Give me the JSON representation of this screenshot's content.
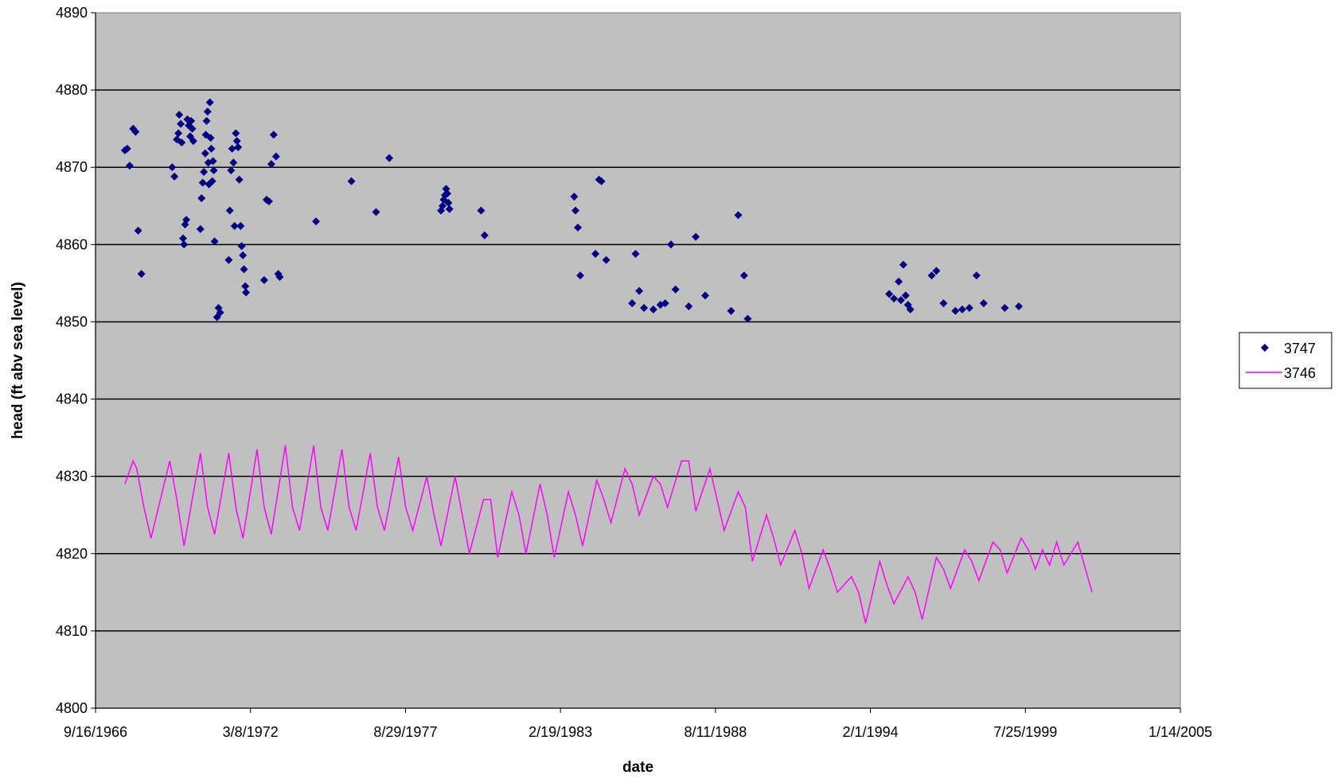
{
  "chart_data": {
    "type": "scatter",
    "title": "",
    "xlabel": "date",
    "ylabel": "head (ft abv sea level)",
    "xlim": [
      "9/16/1966",
      "1/14/2005"
    ],
    "ylim": [
      4800,
      4890
    ],
    "xticks": [
      "9/16/1966",
      "3/8/1972",
      "8/29/1977",
      "2/19/1983",
      "8/11/1988",
      "2/1/1994",
      "7/25/1999",
      "1/14/2005"
    ],
    "yticks": [
      "4800",
      "4810",
      "4820",
      "4830",
      "4840",
      "4850",
      "4860",
      "4870",
      "4880",
      "4890"
    ],
    "grid": {
      "y_major": true,
      "x_major": false
    },
    "plot_background": "#c0c0c0",
    "legend_position": "right",
    "series": [
      {
        "name": "3747",
        "kind": "markers",
        "color": "#000080",
        "points": [
          [
            "9/30/1967",
            4872.2
          ],
          [
            "10/30/1967",
            4872.4
          ],
          [
            "12/1/1967",
            4870.2
          ],
          [
            "1/15/1968",
            4875
          ],
          [
            "2/15/1968",
            4874.6
          ],
          [
            "3/20/1968",
            4861.8
          ],
          [
            "5/1/1968",
            4856.2
          ],
          [
            "6/1/1969",
            4870
          ],
          [
            "7/1/1969",
            4868.8
          ],
          [
            "8/1/1969",
            4873.6
          ],
          [
            "8/20/1969",
            4874.4
          ],
          [
            "9/1/1969",
            4876.8
          ],
          [
            "9/20/1969",
            4875.6
          ],
          [
            "10/1/1969",
            4873.2
          ],
          [
            "10/20/1969",
            4860.8
          ],
          [
            "11/1/1969",
            4860
          ],
          [
            "11/15/1969",
            4862.6
          ],
          [
            "12/1/1969",
            4863.2
          ],
          [
            "12/15/1969",
            4876.2
          ],
          [
            "1/1/1970",
            4875.4
          ],
          [
            "1/20/1970",
            4874
          ],
          [
            "2/1/1970",
            4876
          ],
          [
            "2/15/1970",
            4875
          ],
          [
            "3/1/1970",
            4873.4
          ],
          [
            "6/1/1970",
            4862
          ],
          [
            "6/15/1970",
            4866
          ],
          [
            "7/1/1970",
            4868
          ],
          [
            "7/15/1970",
            4869.4
          ],
          [
            "8/1/1970",
            4871.8
          ],
          [
            "8/10/1970",
            4874.2
          ],
          [
            "8/20/1970",
            4876
          ],
          [
            "9/1/1970",
            4877.2
          ],
          [
            "9/10/1970",
            4870.6
          ],
          [
            "9/20/1970",
            4867.8
          ],
          [
            "10/1/1970",
            4878.4
          ],
          [
            "10/10/1970",
            4873.8
          ],
          [
            "10/20/1970",
            4872.4
          ],
          [
            "11/1/1970",
            4868.2
          ],
          [
            "11/10/1970",
            4870.8
          ],
          [
            "11/20/1970",
            4869.6
          ],
          [
            "12/1/1970",
            4860.4
          ],
          [
            "1/1/1971",
            4850.6
          ],
          [
            "1/20/1971",
            4851.8
          ],
          [
            "2/10/1971",
            4851.2
          ],
          [
            "6/1/1971",
            4858
          ],
          [
            "6/15/1971",
            4864.4
          ],
          [
            "7/1/1971",
            4869.6
          ],
          [
            "7/15/1971",
            4872.4
          ],
          [
            "8/1/1971",
            4870.6
          ],
          [
            "8/15/1971",
            4862.4
          ],
          [
            "9/1/1971",
            4874.4
          ],
          [
            "9/15/1971",
            4873.4
          ],
          [
            "10/1/1971",
            4872.6
          ],
          [
            "10/15/1971",
            4868.4
          ],
          [
            "11/1/1971",
            4862.4
          ],
          [
            "11/15/1971",
            4859.8
          ],
          [
            "12/1/1971",
            4858.6
          ],
          [
            "12/15/1971",
            4856.8
          ],
          [
            "1/1/1972",
            4854.6
          ],
          [
            "1/10/1972",
            4853.8
          ],
          [
            "9/1/1972",
            4855.4
          ],
          [
            "10/1/1972",
            4865.8
          ],
          [
            "11/1/1972",
            4865.6
          ],
          [
            "12/1/1972",
            4870.4
          ],
          [
            "1/1/1973",
            4874.2
          ],
          [
            "2/1/1973",
            4871.4
          ],
          [
            "3/1/1973",
            4856.2
          ],
          [
            "3/20/1973",
            4855.8
          ],
          [
            "7/1/1974",
            4863
          ],
          [
            "10/1/1975",
            4868.2
          ],
          [
            "8/15/1976",
            4864.2
          ],
          [
            "2/1/1977",
            4871.2
          ],
          [
            "12/1/1978",
            4864.4
          ],
          [
            "12/20/1978",
            4865
          ],
          [
            "1/5/1979",
            4865.8
          ],
          [
            "1/20/1979",
            4866.4
          ],
          [
            "2/5/1979",
            4867.2
          ],
          [
            "2/20/1979",
            4866.6
          ],
          [
            "3/5/1979",
            4865.4
          ],
          [
            "3/20/1979",
            4864.6
          ],
          [
            "5/1/1980",
            4864.4
          ],
          [
            "6/15/1980",
            4861.2
          ],
          [
            "8/15/1983",
            4866.2
          ],
          [
            "9/1/1983",
            4864.4
          ],
          [
            "10/1/1983",
            4862.2
          ],
          [
            "11/1/1983",
            4856
          ],
          [
            "5/15/1984",
            4858.8
          ],
          [
            "7/1/1984",
            4868.4
          ],
          [
            "8/1/1984",
            4868.2
          ],
          [
            "10/1/1984",
            4858
          ],
          [
            "9/1/1985",
            4852.4
          ],
          [
            "10/15/1985",
            4858.8
          ],
          [
            "12/1/1985",
            4854
          ],
          [
            "2/1/1986",
            4851.8
          ],
          [
            "6/1/1986",
            4851.6
          ],
          [
            "9/1/1986",
            4852.2
          ],
          [
            "11/1/1986",
            4852.4
          ],
          [
            "1/15/1987",
            4860
          ],
          [
            "3/15/1987",
            4854.2
          ],
          [
            "9/1/1987",
            4852
          ],
          [
            "12/1/1987",
            4861
          ],
          [
            "4/1/1988",
            4853.4
          ],
          [
            "3/1/1989",
            4851.4
          ],
          [
            "6/1/1989",
            4863.8
          ],
          [
            "8/15/1989",
            4856
          ],
          [
            "10/1/1989",
            4850.4
          ],
          [
            "10/1/1994",
            4853.6
          ],
          [
            "12/1/1994",
            4853
          ],
          [
            "2/1/1995",
            4855.2
          ],
          [
            "3/1/1995",
            4852.8
          ],
          [
            "4/1/1995",
            4857.4
          ],
          [
            "5/1/1995",
            4853.4
          ],
          [
            "6/1/1995",
            4852.2
          ],
          [
            "7/1/1995",
            4851.6
          ],
          [
            "4/1/1996",
            4856
          ],
          [
            "6/1/1996",
            4856.6
          ],
          [
            "9/1/1996",
            4852.4
          ],
          [
            "2/1/1997",
            4851.4
          ],
          [
            "5/1/1997",
            4851.6
          ],
          [
            "8/1/1997",
            4851.8
          ],
          [
            "11/1/1997",
            4856
          ],
          [
            "2/1/1998",
            4852.4
          ],
          [
            "11/1/1998",
            4851.8
          ],
          [
            "5/1/1999",
            4852
          ]
        ]
      },
      {
        "name": "3746",
        "kind": "line",
        "color": "#ff00ff",
        "points": [
          [
            "9/30/1967",
            4829
          ],
          [
            "1/15/1968",
            4832
          ],
          [
            "3/1/1968",
            4831
          ],
          [
            "6/1/1968",
            4826
          ],
          [
            "9/1/1968",
            4822
          ],
          [
            "5/1/1969",
            4832
          ],
          [
            "8/1/1969",
            4827
          ],
          [
            "11/1/1969",
            4821
          ],
          [
            "6/1/1970",
            4833
          ],
          [
            "9/1/1970",
            4826
          ],
          [
            "12/1/1970",
            4822.5
          ],
          [
            "6/1/1971",
            4833
          ],
          [
            "9/1/1971",
            4826
          ],
          [
            "12/1/1971",
            4822
          ],
          [
            "6/1/1972",
            4833.5
          ],
          [
            "9/1/1972",
            4826
          ],
          [
            "12/1/1972",
            4822.5
          ],
          [
            "6/1/1973",
            4834
          ],
          [
            "9/1/1973",
            4826
          ],
          [
            "12/1/1973",
            4823
          ],
          [
            "6/1/1974",
            4834
          ],
          [
            "9/1/1974",
            4826
          ],
          [
            "12/1/1974",
            4823
          ],
          [
            "6/1/1975",
            4833.5
          ],
          [
            "9/1/1975",
            4826
          ],
          [
            "12/1/1975",
            4823
          ],
          [
            "6/1/1976",
            4833
          ],
          [
            "9/1/1976",
            4826
          ],
          [
            "12/1/1976",
            4823
          ],
          [
            "6/1/1977",
            4832.5
          ],
          [
            "9/1/1977",
            4826
          ],
          [
            "12/1/1977",
            4823
          ],
          [
            "6/1/1978",
            4830
          ],
          [
            "9/1/1978",
            4825
          ],
          [
            "12/1/1978",
            4821
          ],
          [
            "6/1/1979",
            4830
          ],
          [
            "9/1/1979",
            4825
          ],
          [
            "12/1/1979",
            4820
          ],
          [
            "6/1/1980",
            4827
          ],
          [
            "9/1/1980",
            4827
          ],
          [
            "12/1/1980",
            4819.5
          ],
          [
            "6/1/1981",
            4828
          ],
          [
            "9/1/1981",
            4825
          ],
          [
            "12/1/1981",
            4820
          ],
          [
            "6/1/1982",
            4829
          ],
          [
            "9/1/1982",
            4825
          ],
          [
            "12/1/1982",
            4819.5
          ],
          [
            "6/1/1983",
            4828
          ],
          [
            "9/1/1983",
            4825
          ],
          [
            "12/1/1983",
            4821
          ],
          [
            "6/1/1984",
            4829.5
          ],
          [
            "9/1/1984",
            4827
          ],
          [
            "12/1/1984",
            4824
          ],
          [
            "6/1/1985",
            4831
          ],
          [
            "9/1/1985",
            4829
          ],
          [
            "12/1/1985",
            4825
          ],
          [
            "6/1/1986",
            4830
          ],
          [
            "9/1/1986",
            4829
          ],
          [
            "12/1/1986",
            4826
          ],
          [
            "6/1/1987",
            4832
          ],
          [
            "9/1/1987",
            4832
          ],
          [
            "12/1/1987",
            4825.5
          ],
          [
            "6/1/1988",
            4831
          ],
          [
            "9/1/1988",
            4827
          ],
          [
            "12/1/1988",
            4823
          ],
          [
            "6/1/1989",
            4828
          ],
          [
            "9/1/1989",
            4826
          ],
          [
            "12/1/1989",
            4819
          ],
          [
            "6/1/1990",
            4825
          ],
          [
            "9/1/1990",
            4822
          ],
          [
            "12/1/1990",
            4818.5
          ],
          [
            "6/1/1991",
            4823
          ],
          [
            "9/1/1991",
            4820
          ],
          [
            "12/1/1991",
            4815.5
          ],
          [
            "6/1/1992",
            4820.5
          ],
          [
            "9/1/1992",
            4818
          ],
          [
            "12/1/1992",
            4815
          ],
          [
            "6/1/1993",
            4817
          ],
          [
            "9/1/1993",
            4815
          ],
          [
            "12/1/1993",
            4811
          ],
          [
            "6/1/1994",
            4819
          ],
          [
            "9/1/1994",
            4816
          ],
          [
            "12/1/1994",
            4813.5
          ],
          [
            "6/1/1995",
            4817
          ],
          [
            "9/1/1995",
            4815
          ],
          [
            "12/1/1995",
            4811.5
          ],
          [
            "6/1/1996",
            4819.5
          ],
          [
            "9/1/1996",
            4818
          ],
          [
            "12/1/1996",
            4815.5
          ],
          [
            "6/1/1997",
            4820.5
          ],
          [
            "9/1/1997",
            4819
          ],
          [
            "12/1/1997",
            4816.5
          ],
          [
            "6/1/1998",
            4821.5
          ],
          [
            "9/1/1998",
            4820.5
          ],
          [
            "12/1/1998",
            4817.5
          ],
          [
            "6/1/1999",
            4822
          ],
          [
            "9/1/1999",
            4820.5
          ],
          [
            "12/1/1999",
            4818
          ],
          [
            "3/1/2000",
            4820.5
          ],
          [
            "6/1/2000",
            4818.5
          ],
          [
            "9/1/2000",
            4821.5
          ],
          [
            "12/1/2000",
            4818.5
          ],
          [
            "6/1/2001",
            4821.5
          ],
          [
            "12/1/2001",
            4815
          ]
        ]
      }
    ]
  }
}
